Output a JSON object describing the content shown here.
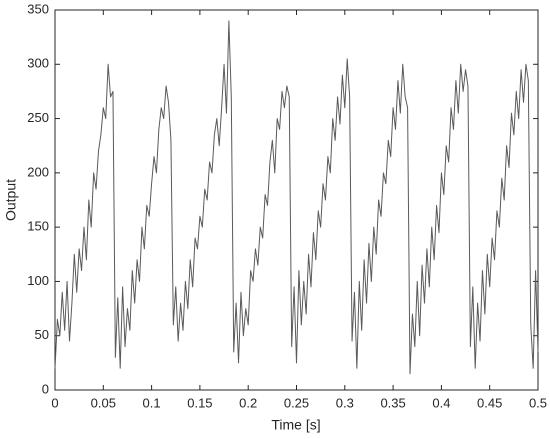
{
  "chart_data": {
    "type": "line",
    "x_label": "Time [s]",
    "y_label": "Output",
    "xlim": [
      0,
      0.5
    ],
    "ylim": [
      0,
      350
    ],
    "xticks": [
      0,
      0.05,
      0.1,
      0.15,
      0.2,
      0.25,
      0.3,
      0.35,
      0.4,
      0.45,
      0.5
    ],
    "yticks": [
      0,
      50,
      100,
      150,
      200,
      250,
      300,
      350
    ],
    "grid": false,
    "x": [
      0,
      0.0025,
      0.005,
      0.0075,
      0.01,
      0.0125,
      0.015,
      0.0175,
      0.02,
      0.0225,
      0.025,
      0.0275,
      0.03,
      0.0325,
      0.035,
      0.0375,
      0.04,
      0.0425,
      0.045,
      0.0475,
      0.05,
      0.0525,
      0.055,
      0.0575,
      0.06,
      0.0625,
      0.065,
      0.0675,
      0.07,
      0.0725,
      0.075,
      0.0775,
      0.08,
      0.0825,
      0.085,
      0.0875,
      0.09,
      0.0925,
      0.095,
      0.0975,
      0.1,
      0.1025,
      0.105,
      0.1075,
      0.11,
      0.1125,
      0.115,
      0.1175,
      0.12,
      0.1225,
      0.125,
      0.1275,
      0.13,
      0.1325,
      0.135,
      0.1375,
      0.14,
      0.1425,
      0.145,
      0.1475,
      0.15,
      0.1525,
      0.155,
      0.1575,
      0.16,
      0.1625,
      0.165,
      0.1675,
      0.17,
      0.1725,
      0.175,
      0.1775,
      0.18,
      0.1825,
      0.185,
      0.1875,
      0.19,
      0.1925,
      0.195,
      0.1975,
      0.2,
      0.2025,
      0.205,
      0.2075,
      0.21,
      0.2125,
      0.215,
      0.2175,
      0.22,
      0.2225,
      0.225,
      0.2275,
      0.23,
      0.2325,
      0.235,
      0.2375,
      0.24,
      0.2425,
      0.245,
      0.2475,
      0.25,
      0.2525,
      0.255,
      0.2575,
      0.26,
      0.2625,
      0.265,
      0.2675,
      0.27,
      0.2725,
      0.275,
      0.2775,
      0.28,
      0.2825,
      0.285,
      0.2875,
      0.29,
      0.2925,
      0.295,
      0.2975,
      0.3,
      0.3025,
      0.305,
      0.3075,
      0.31,
      0.3125,
      0.315,
      0.3175,
      0.32,
      0.3225,
      0.325,
      0.3275,
      0.33,
      0.3325,
      0.335,
      0.3375,
      0.34,
      0.3425,
      0.345,
      0.3475,
      0.35,
      0.3525,
      0.355,
      0.3575,
      0.36,
      0.3625,
      0.365,
      0.3675,
      0.37,
      0.3725,
      0.375,
      0.3775,
      0.38,
      0.3825,
      0.385,
      0.3875,
      0.39,
      0.3925,
      0.395,
      0.3975,
      0.4,
      0.4025,
      0.405,
      0.4075,
      0.41,
      0.4125,
      0.415,
      0.4175,
      0.42,
      0.4225,
      0.425,
      0.4275,
      0.43,
      0.4325,
      0.435,
      0.4375,
      0.44,
      0.4425,
      0.445,
      0.4475,
      0.45,
      0.4525,
      0.455,
      0.4575,
      0.46,
      0.4625,
      0.465,
      0.4675,
      0.47,
      0.4725,
      0.475,
      0.4775,
      0.48,
      0.4825,
      0.485,
      0.4875,
      0.49,
      0.4925,
      0.495,
      0.4975,
      0.5
    ],
    "series": [
      {
        "color": "#5a5a5a",
        "values": [
          20,
          65,
          50,
          90,
          55,
          100,
          45,
          80,
          125,
          90,
          130,
          110,
          150,
          120,
          175,
          150,
          200,
          185,
          220,
          235,
          260,
          250,
          300,
          270,
          275,
          30,
          85,
          20,
          95,
          40,
          75,
          55,
          110,
          80,
          120,
          100,
          150,
          130,
          170,
          160,
          190,
          215,
          200,
          240,
          260,
          250,
          280,
          265,
          230,
          60,
          95,
          45,
          80,
          55,
          100,
          75,
          120,
          95,
          140,
          130,
          160,
          150,
          185,
          175,
          210,
          200,
          235,
          250,
          225,
          260,
          300,
          255,
          340,
          270,
          35,
          80,
          25,
          90,
          50,
          75,
          60,
          110,
          100,
          130,
          115,
          150,
          140,
          180,
          170,
          210,
          230,
          200,
          250,
          240,
          275,
          260,
          280,
          270,
          40,
          95,
          25,
          110,
          60,
          100,
          70,
          125,
          95,
          145,
          120,
          165,
          150,
          190,
          175,
          215,
          200,
          250,
          230,
          270,
          245,
          290,
          260,
          305,
          270,
          45,
          90,
          20,
          100,
          55,
          120,
          80,
          135,
          100,
          150,
          125,
          175,
          160,
          200,
          190,
          230,
          215,
          260,
          240,
          285,
          255,
          300,
          270,
          260,
          15,
          70,
          40,
          100,
          50,
          115,
          80,
          130,
          95,
          150,
          120,
          170,
          145,
          200,
          180,
          225,
          210,
          260,
          240,
          285,
          255,
          300,
          275,
          295,
          280,
          40,
          95,
          20,
          80,
          45,
          110,
          70,
          125,
          95,
          140,
          120,
          165,
          150,
          195,
          175,
          225,
          205,
          255,
          235,
          275,
          250,
          295,
          265,
          300,
          285,
          60,
          20,
          110,
          35
        ]
      }
    ]
  }
}
